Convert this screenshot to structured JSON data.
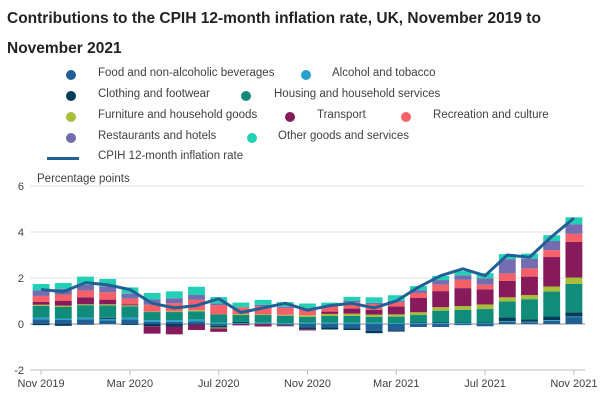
{
  "title": "Contributions to the CPIH 12-month inflation rate, UK, November 2019 to November 2021",
  "chart_data": {
    "type": "bar",
    "stacked": true,
    "ylabel": "Percentage points",
    "ylim": [
      -2,
      6
    ],
    "yticks": [
      "6",
      "4",
      "2",
      "0",
      "-2"
    ],
    "xtick_labels": [
      "Nov 2019",
      "Mar 2020",
      "Jul 2020",
      "Nov 2020",
      "Mar 2021",
      "Jul 2021",
      "Nov 2021"
    ],
    "months": [
      "Nov 2019",
      "Dec 2019",
      "Jan 2020",
      "Feb 2020",
      "Mar 2020",
      "Apr 2020",
      "May 2020",
      "Jun 2020",
      "Jul 2020",
      "Aug 2020",
      "Sep 2020",
      "Oct 2020",
      "Nov 2020",
      "Dec 2020",
      "Jan 2021",
      "Feb 2021",
      "Mar 2021",
      "Apr 2021",
      "May 2021",
      "Jun 2021",
      "Jul 2021",
      "Aug 2021",
      "Sep 2021",
      "Oct 2021",
      "Nov 2021"
    ],
    "series": [
      {
        "name": "Food and non-alcoholic beverages",
        "color": "#206095",
        "values": [
          0.2,
          0.18,
          0.2,
          0.15,
          0.2,
          0.09,
          0.09,
          0.12,
          -0.08,
          0.0,
          0.03,
          -0.03,
          -0.14,
          -0.14,
          -0.18,
          -0.3,
          -0.27,
          -0.13,
          -0.13,
          -0.05,
          -0.1,
          0.1,
          0.07,
          0.14,
          0.3
        ]
      },
      {
        "name": "Alcohol and tobacco",
        "color": "#27a0cc",
        "values": [
          0.07,
          0.06,
          0.07,
          0.07,
          0.07,
          0.07,
          0.08,
          0.08,
          0.05,
          0.04,
          0.04,
          0.04,
          0.05,
          0.05,
          0.05,
          0.05,
          0.04,
          0.04,
          0.04,
          0.04,
          0.03,
          0.03,
          0.03,
          0.03,
          0.03
        ]
      },
      {
        "name": "Clothing and footwear",
        "color": "#003c57",
        "values": [
          -0.05,
          -0.08,
          -0.03,
          0.05,
          -0.04,
          -0.1,
          -0.11,
          -0.04,
          -0.07,
          0.05,
          -0.01,
          -0.03,
          -0.09,
          -0.1,
          -0.08,
          -0.1,
          -0.06,
          0.03,
          0.04,
          0.03,
          0.04,
          0.15,
          0.1,
          0.16,
          0.18
        ]
      },
      {
        "name": "Housing and household services",
        "color": "#118c7b",
        "values": [
          0.52,
          0.5,
          0.55,
          0.54,
          0.5,
          0.36,
          0.35,
          0.35,
          0.37,
          0.3,
          0.32,
          0.32,
          0.26,
          0.3,
          0.3,
          0.26,
          0.28,
          0.32,
          0.5,
          0.55,
          0.58,
          0.7,
          0.88,
          1.08,
          1.23
        ]
      },
      {
        "name": "Furniture and household goods",
        "color": "#a8bd3a",
        "values": [
          0.05,
          0.06,
          0.04,
          0.05,
          0.04,
          0.02,
          0.03,
          0.05,
          -0.04,
          0.04,
          0.03,
          0.04,
          0.07,
          0.09,
          0.1,
          0.1,
          0.1,
          0.12,
          0.15,
          0.16,
          0.2,
          0.18,
          0.18,
          0.22,
          0.28
        ]
      },
      {
        "name": "Transport",
        "color": "#871a5b",
        "values": [
          0.12,
          0.2,
          0.3,
          0.2,
          0.05,
          -0.32,
          -0.34,
          -0.22,
          -0.15,
          -0.05,
          -0.1,
          -0.04,
          -0.05,
          0.1,
          0.22,
          0.2,
          0.35,
          0.62,
          0.7,
          0.78,
          0.66,
          0.72,
          0.8,
          1.28,
          1.55
        ]
      },
      {
        "name": "Recreation and culture",
        "color": "#f66068",
        "values": [
          0.26,
          0.28,
          0.3,
          0.32,
          0.24,
          0.3,
          0.35,
          0.45,
          0.4,
          0.3,
          0.36,
          0.3,
          0.3,
          0.22,
          0.28,
          0.26,
          0.18,
          0.22,
          0.28,
          0.36,
          0.2,
          0.32,
          0.36,
          0.3,
          0.35
        ]
      },
      {
        "name": "Restaurants and hotels",
        "color": "#746cb1",
        "values": [
          0.24,
          0.25,
          0.24,
          0.26,
          0.22,
          0.23,
          0.22,
          0.21,
          0.07,
          -0.02,
          0.05,
          0.05,
          0.03,
          0.0,
          0.05,
          0.05,
          0.06,
          0.12,
          0.2,
          0.2,
          0.28,
          0.62,
          0.42,
          0.4,
          0.42
        ]
      },
      {
        "name": "Other goods and services",
        "color": "#22d0b6",
        "values": [
          0.28,
          0.25,
          0.36,
          0.32,
          0.27,
          0.28,
          0.3,
          0.36,
          0.28,
          0.2,
          0.22,
          0.2,
          0.18,
          0.17,
          0.18,
          0.24,
          0.24,
          0.18,
          0.18,
          0.18,
          0.22,
          0.22,
          0.22,
          0.25,
          0.3
        ]
      }
    ],
    "line": {
      "name": "CPIH 12-month inflation rate",
      "color": "#206095",
      "values": [
        1.5,
        1.4,
        1.8,
        1.7,
        1.5,
        0.9,
        0.7,
        0.8,
        1.1,
        0.5,
        0.7,
        0.9,
        0.6,
        0.8,
        0.9,
        0.7,
        1.0,
        1.6,
        2.1,
        2.4,
        2.1,
        3.0,
        2.9,
        3.8,
        4.6
      ]
    }
  }
}
